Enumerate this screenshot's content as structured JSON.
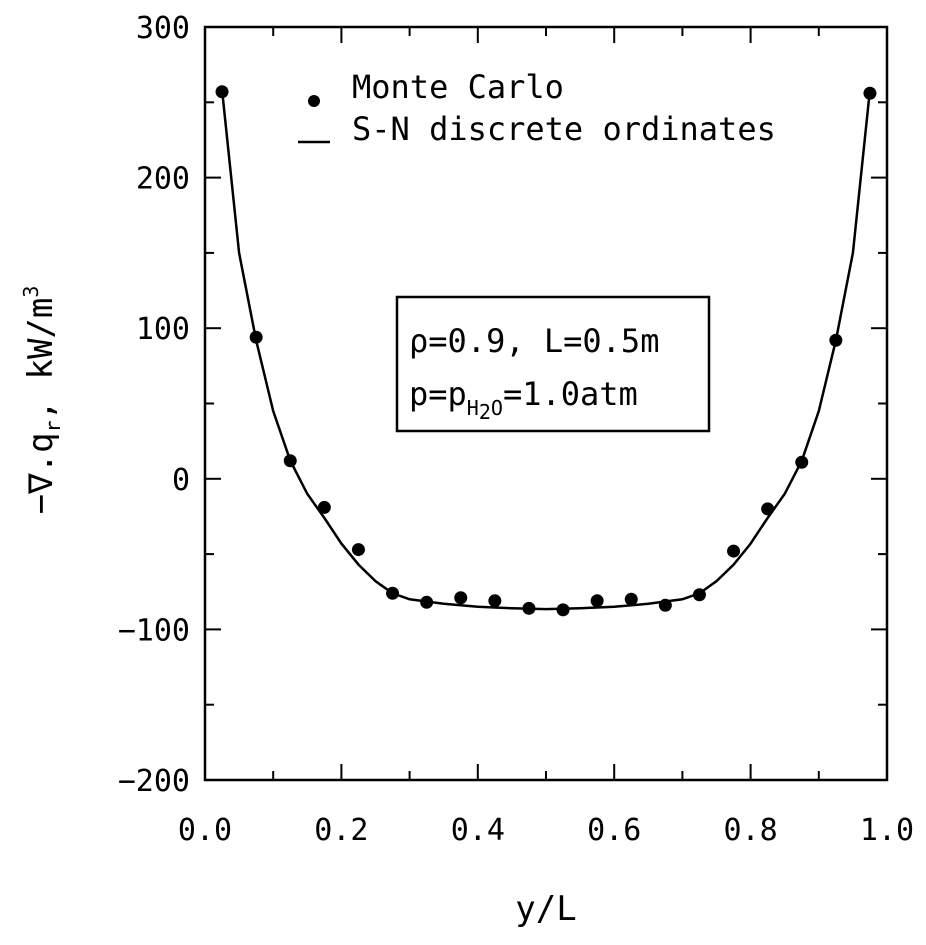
{
  "chart_data": {
    "type": "scatter",
    "title": "",
    "xlabel": "y/L",
    "ylabel": "-∇.q_r, kW/m^3",
    "xlim": [
      0.0,
      1.0
    ],
    "ylim": [
      -200,
      300
    ],
    "x_ticks": [
      "0.0",
      "0.2",
      "0.4",
      "0.6",
      "0.8",
      "1.0"
    ],
    "y_ticks": [
      "300",
      "200",
      "100",
      "0",
      "-100",
      "-200"
    ],
    "legend": {
      "placement": "top-left",
      "entries": [
        {
          "label": "Monte Carlo",
          "marker": "filled-circle"
        },
        {
          "label": "S-N discrete ordinates",
          "marker": "line"
        }
      ]
    },
    "annotation": {
      "line1": "ρ=0.9, L=0.5m",
      "line2_prefix": "p=p",
      "line2_sub": "H",
      "line2_sub2": "2",
      "line2_sub3": "O",
      "line2_suffix": "=1.0atm"
    },
    "series": [
      {
        "name": "Monte Carlo",
        "style": "markers",
        "x": [
          0.025,
          0.075,
          0.125,
          0.175,
          0.225,
          0.275,
          0.325,
          0.375,
          0.425,
          0.475,
          0.525,
          0.575,
          0.625,
          0.675,
          0.725,
          0.775,
          0.825,
          0.875,
          0.925,
          0.975
        ],
        "y": [
          257,
          94,
          12,
          -19,
          -47,
          -76,
          -82,
          -79,
          -81,
          -86,
          -87,
          -81,
          -80,
          -84,
          -77,
          -48,
          -20,
          11,
          92,
          256
        ]
      },
      {
        "name": "S-N discrete ordinates",
        "style": "line",
        "x": [
          0.025,
          0.05,
          0.075,
          0.1,
          0.125,
          0.15,
          0.175,
          0.2,
          0.225,
          0.25,
          0.275,
          0.3,
          0.35,
          0.4,
          0.45,
          0.5,
          0.55,
          0.6,
          0.65,
          0.7,
          0.725,
          0.75,
          0.775,
          0.8,
          0.825,
          0.85,
          0.875,
          0.9,
          0.925,
          0.95,
          0.975
        ],
        "y": [
          258,
          150,
          92,
          45,
          12,
          -10,
          -26,
          -43,
          -57,
          -68,
          -76,
          -80,
          -83,
          -85,
          -86,
          -86.5,
          -86,
          -85,
          -83,
          -80,
          -76,
          -68,
          -57,
          -43,
          -26,
          -10,
          12,
          45,
          92,
          150,
          258
        ]
      }
    ],
    "grid": false
  }
}
